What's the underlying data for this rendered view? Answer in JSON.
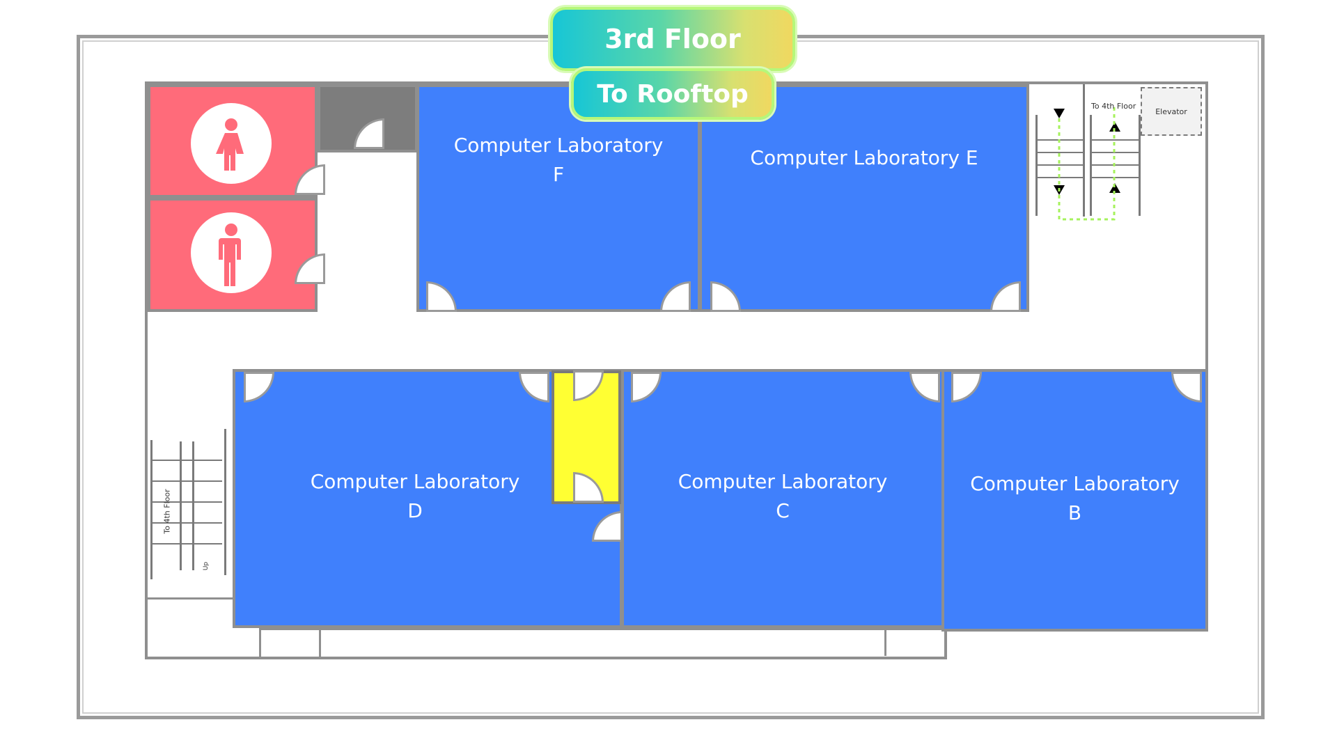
{
  "header": {
    "floor_label": "3rd Floor",
    "rooftop_label": "To Rooftop"
  },
  "rooms": [
    {
      "id": "lab-f",
      "label": "Computer Laboratory\nF"
    },
    {
      "id": "lab-e",
      "label": "Computer Laboratory E"
    },
    {
      "id": "lab-d",
      "label": "Computer Laboratory\nD"
    },
    {
      "id": "lab-c",
      "label": "Computer Laboratory\nC"
    },
    {
      "id": "lab-b",
      "label": "Computer Laboratory\nB"
    }
  ],
  "restrooms": [
    {
      "icon": "female-restroom-icon"
    },
    {
      "icon": "male-restroom-icon"
    }
  ],
  "stairs": {
    "east_label": "To 4th Floor",
    "west_label": "To 4th Floor",
    "west_up": "Up"
  },
  "elevator": {
    "label": "Elevator"
  },
  "colors": {
    "lab": "#4080fc",
    "restroom": "#ff6b7a",
    "closet": "#ffff33",
    "utility": "#7d7d7d",
    "pill_border": "#b6f77a"
  }
}
